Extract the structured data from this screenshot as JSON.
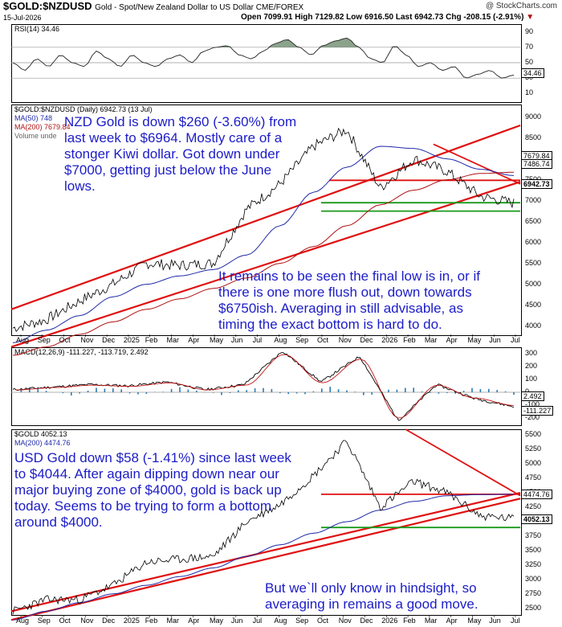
{
  "header": {
    "ticker": "$GOLD:$NZDUSD",
    "subtitle": "Gold - Spot/New Zealand Dollar to US Dollar CME/FOREX",
    "brand": "@ StockCharts.com",
    "date": "15-Jul-2026",
    "ohlc": "Open 7099.91  High 7129.82  Low 6916.50  Last 6942.73  Chg -208.15 (-2.91%)"
  },
  "colors": {
    "blue_text": "#1c1cc8",
    "trend_red": "#e01010",
    "support_green": "#1a9a1a",
    "ma50": "#1f2aa8",
    "ma200": "#b01010",
    "macd_hist": "#2c7ab0"
  },
  "rsi_panel": {
    "label": "RSI(14) 34.46",
    "ticks": [
      "90",
      "70",
      "50",
      "30",
      "10"
    ],
    "current_box": "34.46"
  },
  "nzd_panel": {
    "label": "$GOLD:$NZDUSD (Daily) 6942.73 (13 Jul)",
    "legend_ma50": "MA(50) 748",
    "legend_ma200": "MA(200) 7679.84",
    "legend_volume": "Volume unde",
    "ticks": [
      "9000",
      "8500",
      "8000",
      "7500",
      "7000",
      "6500",
      "6000",
      "5500",
      "5000",
      "4500",
      "4000"
    ],
    "boxes": [
      "7679.84",
      "7486.74",
      "6942.73"
    ],
    "annotation_1": [
      "NZD Gold is down $260 (-3.60%) from",
      "last week to $6964. Mostly care of a",
      "stonger Kiwi dollar. Got down under",
      "$7000, getting just below the June",
      "lows."
    ],
    "annotation_2": [
      "It remains to be seen the final low is in, or if",
      "there is one more flush out, down towards",
      "$6750ish. Averaging in still advisable, as",
      "timing the exact bottom is hard to do."
    ]
  },
  "macd_panel": {
    "label": "MACD(12,26,9) -111.227, -113.719, 2.492",
    "ticks": [
      "300",
      "200",
      "100",
      "0",
      "-100",
      "-200"
    ],
    "boxes": [
      "2.492",
      "-111.227"
    ]
  },
  "usd_panel": {
    "label": "$GOLD 4052.13",
    "legend_ma200": "MA(200) 4474.76",
    "ticks": [
      "5500",
      "5250",
      "5000",
      "4750",
      "4500",
      "4250",
      "4000",
      "3750",
      "3500",
      "3250",
      "3000",
      "2750",
      "2500"
    ],
    "boxes": [
      "4474.76",
      "4052.13"
    ],
    "annotation_1": [
      "USD Gold down $58 (-1.41%) since last week",
      "to $4044. After again dipping down near our",
      "major buying zone of $4000, gold is back up",
      "today. Seems to be trying to form a bottom",
      "around $4000."
    ],
    "annotation_2": [
      "But we`ll only know in hindsight, so",
      "averaging in remains a good move."
    ]
  },
  "x_axis": [
    "Aug",
    "Sep",
    "Oct",
    "Nov",
    "Dec",
    "2025",
    "Feb",
    "Mar",
    "Apr",
    "May",
    "Jun",
    "Jul",
    "Aug",
    "Sep",
    "Oct",
    "Nov",
    "Dec",
    "2026",
    "Feb",
    "Mar",
    "Apr",
    "May",
    "Jun",
    "Jul"
  ],
  "chart_data": [
    {
      "type": "line",
      "title": "$GOLD:$NZDUSD (Daily)",
      "ylim": [
        3800,
        9300
      ],
      "x": [
        "Aug 2024",
        "Oct 2024",
        "Dec 2024",
        "Feb 2025",
        "Apr 2025",
        "Jun 2025",
        "Aug 2025",
        "Oct 2025",
        "Dec 2025",
        "Jan 2026",
        "Feb 2026",
        "Mar 2026",
        "Apr 2026",
        "May 2026",
        "Jun 2026",
        "Jul 2026"
      ],
      "series": [
        {
          "values": [
            3950,
            4150,
            4600,
            5000,
            5500,
            5450,
            5500,
            6800,
            7400,
            8300,
            8700,
            7300,
            8000,
            7700,
            7100,
            6943
          ]
        }
      ],
      "support_levels": [
        7486.74,
        6950,
        6750
      ]
    },
    {
      "type": "line",
      "title": "MACD(12,26,9)",
      "ylim": [
        -250,
        350
      ],
      "x": [
        "Aug 2024",
        "Oct 2024",
        "Dec 2024",
        "Feb 2025",
        "Apr 2025",
        "Jun 2025",
        "Aug 2025",
        "Oct 2025",
        "Dec 2025",
        "Feb 2026",
        "Mar 2026",
        "Apr 2026",
        "Jun 2026",
        "Jul 2026"
      ],
      "series": [
        {
          "values": [
            20,
            40,
            60,
            50,
            80,
            20,
            60,
            320,
            80,
            280,
            -220,
            60,
            -50,
            -111.227
          ]
        }
      ]
    },
    {
      "type": "line",
      "title": "$GOLD",
      "ylim": [
        2400,
        5600
      ],
      "x": [
        "Aug 2024",
        "Oct 2024",
        "Dec 2024",
        "Feb 2025",
        "Apr 2025",
        "Jun 2025",
        "Aug 2025",
        "Oct 2025",
        "Dec 2025",
        "Jan 2026",
        "Feb 2026",
        "Mar 2026",
        "Apr 2026",
        "May 2026",
        "Jun 2026",
        "Jul 2026"
      ],
      "series": [
        {
          "values": [
            2450,
            2650,
            2650,
            2900,
            3300,
            3350,
            3400,
            4000,
            4300,
            4800,
            5400,
            4250,
            4700,
            4500,
            4100,
            4052.13
          ]
        }
      ],
      "support_levels": [
        4474.76,
        3900
      ]
    }
  ]
}
